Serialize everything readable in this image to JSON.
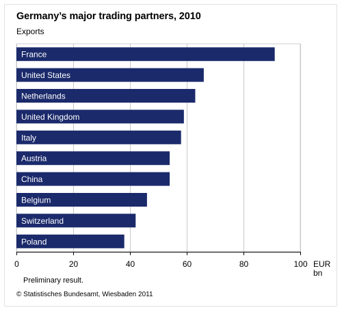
{
  "title": "Germany’s major trading partners, 2010",
  "subtitle": "Exports",
  "note": "Preliminary result.",
  "source": "© Statistisches Bundesamt, Wiesbaden 2011",
  "colors": {
    "bar": "#1b2a6b",
    "bar_label": "#ffffff",
    "grid": "#c8c8c8",
    "axis": "#000000",
    "plot_border": "#cccccc"
  },
  "chart_data": {
    "type": "bar",
    "orientation": "horizontal",
    "title": "Germany’s major trading partners, 2010",
    "subtitle": "Exports",
    "categories": [
      "France",
      "United States",
      "Netherlands",
      "United Kingdom",
      "Italy",
      "Austria",
      "China",
      "Belgium",
      "Switzerland",
      "Poland"
    ],
    "values": [
      91,
      66,
      63,
      59,
      58,
      54,
      54,
      46,
      42,
      38
    ],
    "xlim": [
      0,
      100
    ],
    "xticks": [
      0,
      20,
      40,
      60,
      80,
      100
    ],
    "unit_line1": "EUR",
    "unit_line2": "bn",
    "grid": true,
    "grid_axis": "x",
    "bar_labels_inside": true
  }
}
